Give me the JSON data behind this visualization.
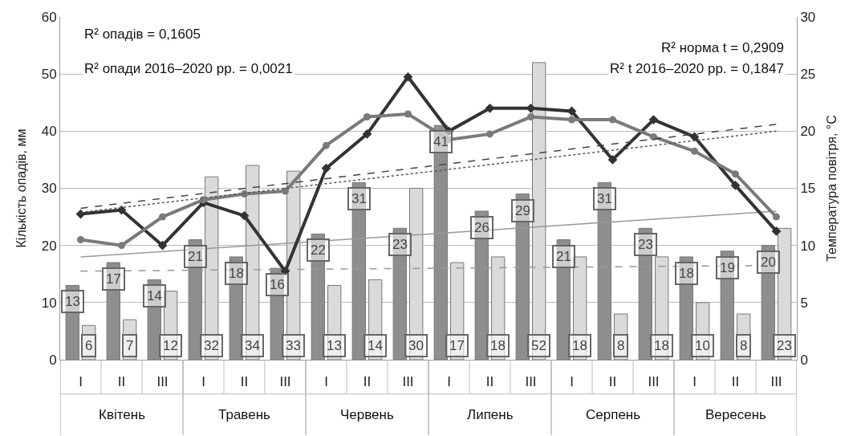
{
  "chart_data": {
    "type": "bar",
    "ylabel": "Кількість опадів, мм",
    "y2label": "Температура повітря, °C",
    "categories": [
      "I",
      "II",
      "III",
      "I",
      "II",
      "III",
      "I",
      "II",
      "III",
      "I",
      "II",
      "III",
      "I",
      "II",
      "III",
      "I",
      "II",
      "III"
    ],
    "series": [
      {
        "color": "#8e8e8e",
        "values": [
          13,
          17,
          14,
          21,
          18,
          16,
          22,
          31,
          23,
          41,
          26,
          29,
          21,
          31,
          23,
          18,
          19,
          20
        ],
        "value_labels": [
          "13",
          "17",
          "14",
          "21",
          "18",
          "16",
          "22",
          "31",
          "23",
          "41",
          "26",
          "29",
          "21",
          "31",
          "23",
          "18",
          "19",
          "20"
        ]
      },
      {
        "color": "#dadada",
        "values": [
          6,
          7,
          12,
          32,
          34,
          33,
          13,
          14,
          30,
          17,
          18,
          52,
          18,
          8,
          18,
          10,
          8,
          23
        ],
        "value_labels": [
          "6",
          "7",
          "12",
          "32",
          "34",
          "33",
          "13",
          "14",
          "30",
          "17",
          "18",
          "52",
          "18",
          "8",
          "18",
          "10",
          "8",
          "23"
        ]
      },
      {
        "type": "line",
        "axis": "y2",
        "color": "#333333",
        "marker": "diamond",
        "line_style": "solid",
        "values": [
          12.75,
          13.1,
          10,
          13.75,
          12.6,
          7.75,
          16.75,
          19.75,
          24.75,
          20,
          22,
          22,
          21.75,
          17.5,
          21,
          19.5,
          15.25,
          11.25
        ]
      },
      {
        "type": "line",
        "axis": "y2",
        "color": "#7a7a7a",
        "marker": "circle",
        "line_style": "solid",
        "values": [
          10.5,
          10,
          12.5,
          14,
          14.5,
          14.75,
          18.75,
          21.25,
          21.5,
          19.25,
          19.75,
          21.25,
          21,
          21,
          19.5,
          18.25,
          16.25,
          12.5
        ]
      },
      {
        "type": "line",
        "axis": "y2",
        "color": "#444444",
        "marker": "none",
        "line_style": "dashed",
        "values": [
          13.25,
          null,
          null,
          null,
          null,
          null,
          null,
          null,
          null,
          null,
          null,
          null,
          null,
          null,
          null,
          null,
          null,
          20.6
        ]
      },
      {
        "type": "line",
        "axis": "y2",
        "color": "#555555",
        "marker": "none",
        "line_style": "dotted",
        "values": [
          12.9,
          null,
          null,
          null,
          null,
          null,
          null,
          null,
          null,
          null,
          null,
          null,
          null,
          null,
          null,
          null,
          null,
          20
        ]
      },
      {
        "type": "line",
        "color": "#999999",
        "marker": "none",
        "line_style": "solid",
        "values": [
          18,
          null,
          null,
          null,
          null,
          null,
          null,
          null,
          null,
          null,
          null,
          null,
          null,
          null,
          null,
          null,
          null,
          26
        ]
      },
      {
        "type": "line",
        "color": "#999999",
        "marker": "none",
        "line_style": "dashed",
        "values": [
          15.5,
          null,
          null,
          null,
          null,
          null,
          null,
          null,
          null,
          null,
          null,
          null,
          null,
          null,
          null,
          null,
          null,
          16.5
        ]
      }
    ],
    "ylim": [
      0,
      60
    ],
    "yticks": [
      0,
      10,
      20,
      30,
      40,
      50,
      60
    ],
    "y2lim": [
      0,
      30
    ],
    "y2ticks": [
      0,
      5,
      10,
      15,
      20,
      25,
      30
    ],
    "grid": "y",
    "annotations": [
      "R² опадів = 0,1605",
      "R² опади 2016–2020 рр. = 0,0021",
      "R² норма t = 0,2909",
      "R² t 2016–2020 рр. = 0,1847",
      "Квітень",
      "Травень",
      "Червень",
      "Липень",
      "Серпень",
      "Вересень"
    ]
  }
}
